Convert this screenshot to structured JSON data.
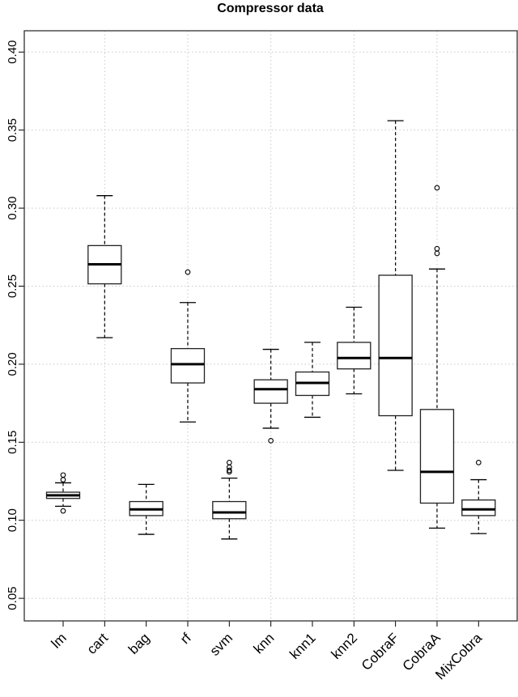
{
  "chart_data": {
    "type": "boxplot",
    "title": "Compressor data",
    "xlabel": "",
    "ylabel": "",
    "ylim": [
      0.035,
      0.415
    ],
    "yticks": [
      "0.05",
      "0.10",
      "0.15",
      "0.20",
      "0.25",
      "0.30",
      "0.35",
      "0.40"
    ],
    "grid": true,
    "categories": [
      "lm",
      "cart",
      "bag",
      "rf",
      "svm",
      "knn",
      "knn1",
      "knn2",
      "CobraF",
      "CobraA",
      "MixCobra"
    ],
    "series": [
      {
        "name": "lm",
        "whisker_low": 0.109,
        "q1": 0.114,
        "median": 0.116,
        "q3": 0.118,
        "whisker_high": 0.124,
        "outliers": [
          0.129,
          0.126,
          0.106
        ]
      },
      {
        "name": "cart",
        "whisker_low": 0.217,
        "q1": 0.2515,
        "median": 0.264,
        "q3": 0.276,
        "whisker_high": 0.308,
        "outliers": []
      },
      {
        "name": "bag",
        "whisker_low": 0.091,
        "q1": 0.103,
        "median": 0.107,
        "q3": 0.112,
        "whisker_high": 0.123,
        "outliers": []
      },
      {
        "name": "rf",
        "whisker_low": 0.163,
        "q1": 0.188,
        "median": 0.2,
        "q3": 0.21,
        "whisker_high": 0.2395,
        "outliers": [
          0.259
        ]
      },
      {
        "name": "svm",
        "whisker_low": 0.088,
        "q1": 0.101,
        "median": 0.105,
        "q3": 0.112,
        "whisker_high": 0.127,
        "outliers": [
          0.137,
          0.134,
          0.132,
          0.131
        ]
      },
      {
        "name": "knn",
        "whisker_low": 0.159,
        "q1": 0.175,
        "median": 0.184,
        "q3": 0.19,
        "whisker_high": 0.2095,
        "outliers": [
          0.151
        ]
      },
      {
        "name": "knn1",
        "whisker_low": 0.166,
        "q1": 0.18,
        "median": 0.188,
        "q3": 0.195,
        "whisker_high": 0.214,
        "outliers": []
      },
      {
        "name": "knn2",
        "whisker_low": 0.181,
        "q1": 0.197,
        "median": 0.204,
        "q3": 0.214,
        "whisker_high": 0.2365,
        "outliers": []
      },
      {
        "name": "CobraF",
        "whisker_low": 0.132,
        "q1": 0.167,
        "median": 0.204,
        "q3": 0.257,
        "whisker_high": 0.356,
        "outliers": []
      },
      {
        "name": "CobraA",
        "whisker_low": 0.095,
        "q1": 0.111,
        "median": 0.131,
        "q3": 0.171,
        "whisker_high": 0.261,
        "outliers": [
          0.313,
          0.274,
          0.271
        ]
      },
      {
        "name": "MixCobra",
        "whisker_low": 0.0915,
        "q1": 0.103,
        "median": 0.107,
        "q3": 0.113,
        "whisker_high": 0.126,
        "outliers": [
          0.137
        ]
      }
    ]
  }
}
